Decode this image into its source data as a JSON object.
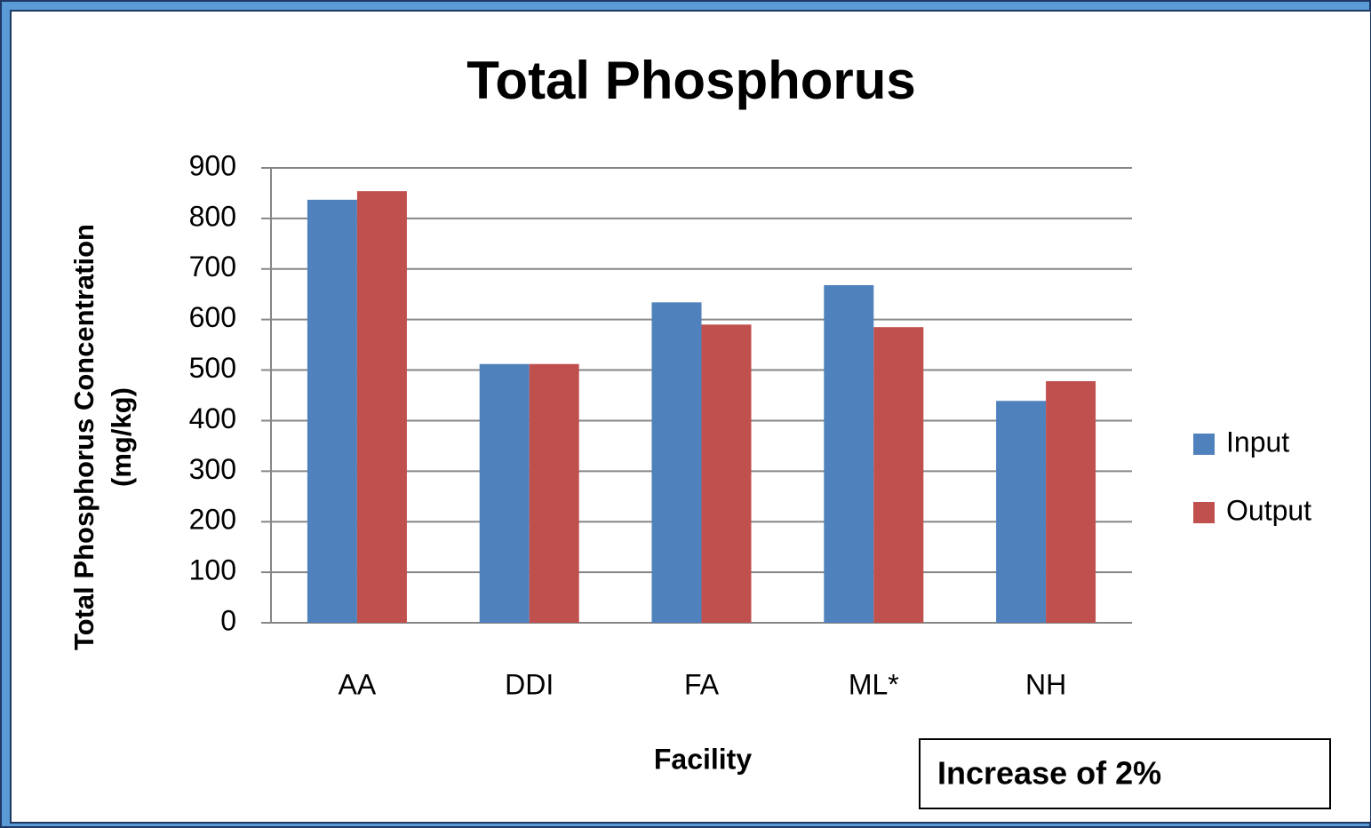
{
  "chart_data": {
    "type": "bar",
    "title": "Total Phosphorus",
    "x_label": "Facility",
    "y_label": [
      "Total Phosphorus  Concentration",
      "(mg/kg)"
    ],
    "categories": [
      "AA",
      "DDI",
      "FA",
      "ML*",
      "NH"
    ],
    "series": [
      {
        "name": "Input",
        "color": "#4f81bd",
        "values": [
          837,
          512,
          634,
          668,
          439
        ]
      },
      {
        "name": "Output",
        "color": "#c0504d",
        "values": [
          854,
          512,
          590,
          585,
          478
        ]
      }
    ],
    "ylim": [
      0,
      900
    ],
    "yticks": [
      0,
      100,
      200,
      300,
      400,
      500,
      600,
      700,
      800,
      900
    ],
    "grid": true,
    "legend": "right",
    "annotation": "Increase of 2%"
  }
}
